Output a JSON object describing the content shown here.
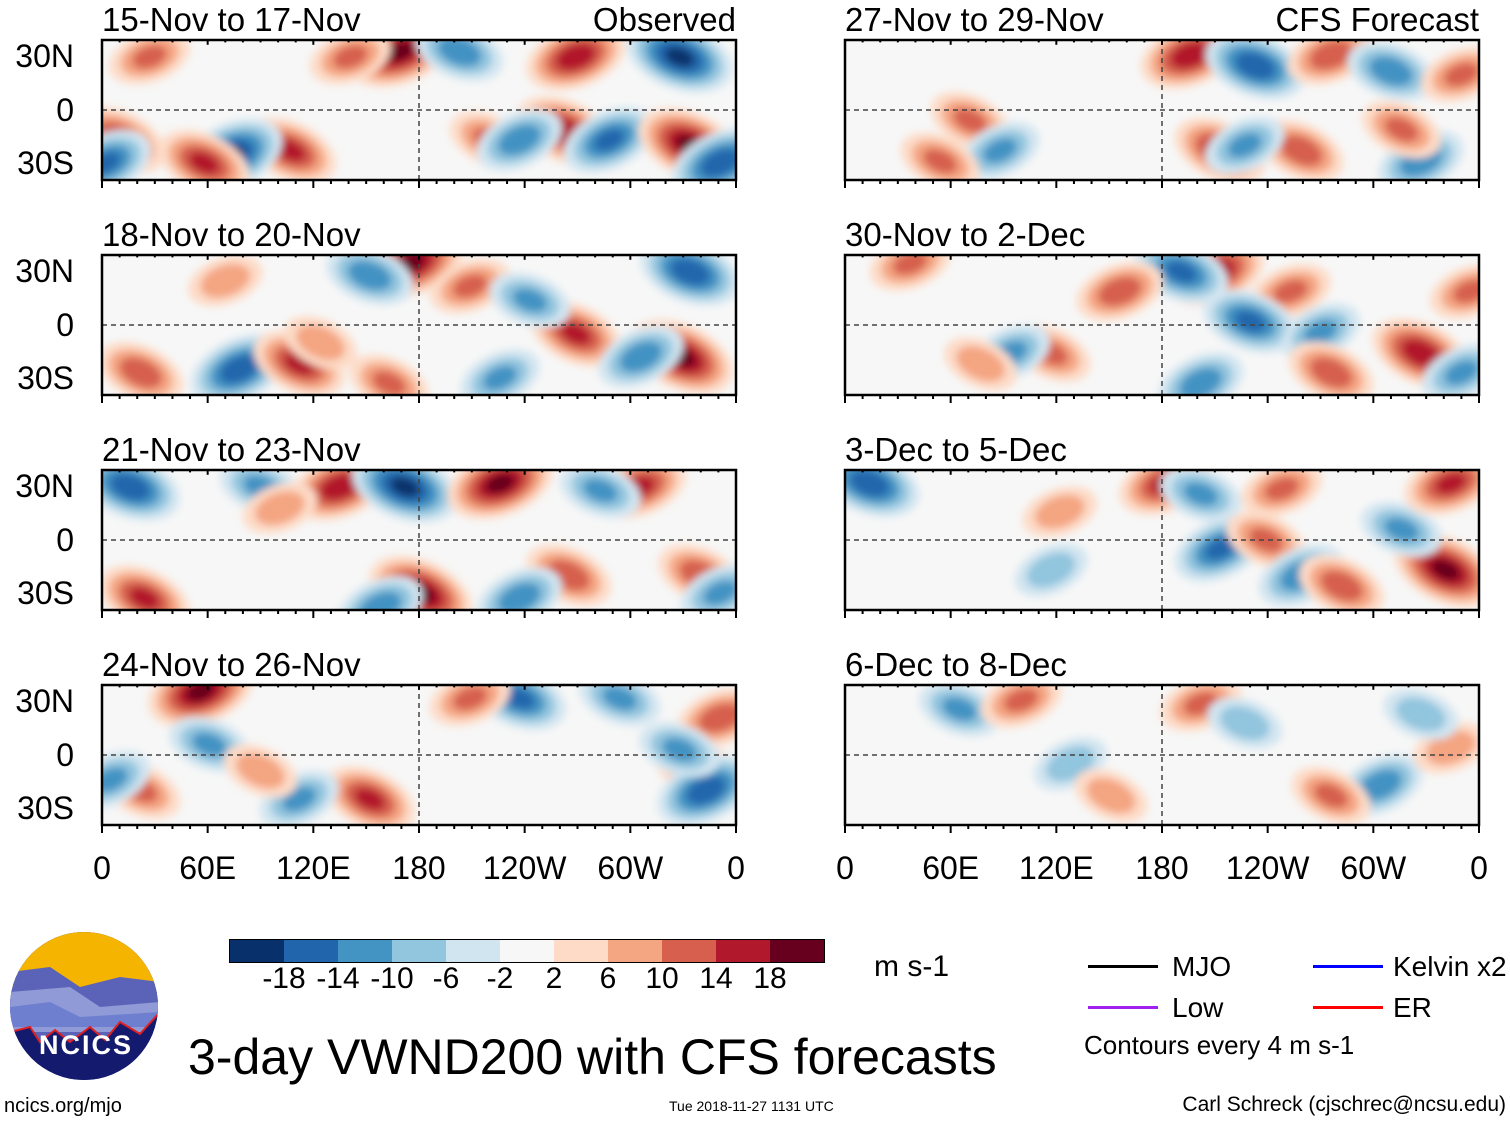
{
  "title": "3-day VWND200 with CFS forecasts",
  "logo_text": "NCICS",
  "url": "ncics.org/mjo",
  "timestamp": "Tue 2018-11-27 1131 UTC",
  "author": "Carl Schreck (cjschrec@ncsu.edu)",
  "column_headers": {
    "observed": "Observed",
    "forecast": "CFS Forecast"
  },
  "lat_labels": [
    "30N",
    "0",
    "30S"
  ],
  "lon_labels": [
    "0",
    "60E",
    "120E",
    "180",
    "120W",
    "60W",
    "0"
  ],
  "colorbar": {
    "units": "m s-1",
    "labels": [
      "-18",
      "-14",
      "-10",
      "-6",
      "-2",
      "2",
      "6",
      "10",
      "14",
      "18"
    ],
    "colors": [
      "#08306b",
      "#2166ac",
      "#4393c3",
      "#92c5de",
      "#d1e5f0",
      "#f7f7f7",
      "#fddbc7",
      "#f4a582",
      "#d6604d",
      "#b2182b",
      "#67001f"
    ]
  },
  "legend": {
    "items": [
      {
        "label": "MJO",
        "color": "#000000"
      },
      {
        "label": "Kelvin x2",
        "color": "#0000ff"
      },
      {
        "label": "Low",
        "color": "#a020f0"
      },
      {
        "label": "ER",
        "color": "#ff0000"
      }
    ],
    "note": "Contours every 4 m s-1"
  },
  "chart_data": {
    "type": "heatmap",
    "variable": "200-hPa meridional wind anomaly (m s-1)",
    "note": "approximate anomaly centers as [lon_deg_east, lat_deg, value]",
    "panels": [
      {
        "title": "15-Nov to 17-Nov",
        "kind": "observed",
        "centers": [
          [
            169,
            33,
            18
          ],
          [
            328,
            30,
            -18
          ],
          [
            269,
            30,
            16
          ],
          [
            107,
            -23,
            14
          ],
          [
            73,
            -26,
            -18
          ],
          [
            58,
            -30,
            14
          ],
          [
            263,
            -12,
            16
          ],
          [
            288,
            -17,
            -14
          ],
          [
            334,
            -20,
            18
          ],
          [
            351,
            -30,
            -16
          ],
          [
            220,
            -17,
            10
          ],
          [
            237,
            -17,
            -12
          ],
          [
            10,
            -17,
            14
          ],
          [
            2,
            -30,
            -14
          ],
          [
            141,
            30,
            10
          ],
          [
            203,
            33,
            -12
          ],
          [
            27,
            30,
            10
          ]
        ]
      },
      {
        "title": "18-Nov to 20-Nov",
        "kind": "observed",
        "centers": [
          [
            175,
            35,
            18
          ],
          [
            152,
            28,
            -12
          ],
          [
            334,
            30,
            -16
          ],
          [
            269,
            -5,
            14
          ],
          [
            329,
            -18,
            18
          ],
          [
            306,
            -18,
            -12
          ],
          [
            78,
            -25,
            -16
          ],
          [
            112,
            -22,
            14
          ],
          [
            163,
            -33,
            10
          ],
          [
            226,
            -30,
            -10
          ],
          [
            22,
            -27,
            12
          ],
          [
            209,
            22,
            10
          ],
          [
            243,
            14,
            -10
          ],
          [
            70,
            25,
            8
          ],
          [
            124,
            -10,
            8
          ]
        ]
      },
      {
        "title": "21-Nov to 23-Nov",
        "kind": "observed",
        "centers": [
          [
            16,
            30,
            -16
          ],
          [
            135,
            30,
            16
          ],
          [
            172,
            30,
            -18
          ],
          [
            226,
            32,
            18
          ],
          [
            305,
            30,
            14
          ],
          [
            283,
            28,
            -10
          ],
          [
            90,
            30,
            -10
          ],
          [
            181,
            -30,
            18
          ],
          [
            265,
            -20,
            12
          ],
          [
            237,
            -33,
            -12
          ],
          [
            340,
            -20,
            12
          ],
          [
            351,
            -30,
            -10
          ],
          [
            24,
            -33,
            14
          ],
          [
            158,
            -38,
            -12
          ],
          [
            101,
            18,
            8
          ]
        ]
      },
      {
        "title": "24-Nov to 26-Nov",
        "kind": "observed",
        "centers": [
          [
            56,
            36,
            18
          ],
          [
            237,
            32,
            -14
          ],
          [
            209,
            32,
            10
          ],
          [
            294,
            32,
            -10
          ],
          [
            340,
            -9,
            14
          ],
          [
            343,
            -20,
            -16
          ],
          [
            351,
            21,
            12
          ],
          [
            152,
            -25,
            14
          ],
          [
            61,
            6,
            -10
          ],
          [
            112,
            -25,
            -10
          ],
          [
            90,
            -9,
            8
          ],
          [
            22,
            -20,
            10
          ],
          [
            328,
            3,
            -10
          ],
          [
            5,
            -14,
            -10
          ]
        ]
      },
      {
        "title": "27-Nov to 29-Nov",
        "kind": "forecast",
        "centers": [
          [
            196,
            31,
            16
          ],
          [
            233,
            25,
            -16
          ],
          [
            276,
            31,
            12
          ],
          [
            310,
            22,
            -12
          ],
          [
            259,
            -23,
            12
          ],
          [
            213,
            -23,
            14
          ],
          [
            227,
            -20,
            -10
          ],
          [
            327,
            -29,
            -12
          ],
          [
            316,
            -11,
            10
          ],
          [
            71,
            -6,
            10
          ],
          [
            88,
            -23,
            -10
          ],
          [
            54,
            -29,
            10
          ],
          [
            350,
            20,
            10
          ]
        ]
      },
      {
        "title": "30-Nov to 2-Dec",
        "kind": "forecast",
        "centers": [
          [
            210,
            30,
            16
          ],
          [
            191,
            30,
            -14
          ],
          [
            156,
            19,
            12
          ],
          [
            253,
            19,
            10
          ],
          [
            230,
            2,
            -14
          ],
          [
            270,
            -4,
            -10
          ],
          [
            327,
            -16,
            16
          ],
          [
            276,
            -27,
            12
          ],
          [
            202,
            -33,
            -12
          ],
          [
            117,
            -16,
            10
          ],
          [
            94,
            -16,
            -10
          ],
          [
            77,
            -22,
            8
          ],
          [
            355,
            19,
            10
          ],
          [
            350,
            -27,
            -10
          ],
          [
            37,
            35,
            10
          ]
        ]
      },
      {
        "title": "3-Dec to 5-Dec",
        "kind": "forecast",
        "centers": [
          [
            14,
            32,
            -16
          ],
          [
            182,
            32,
            14
          ],
          [
            213,
            -5,
            -14
          ],
          [
            239,
            0,
            10
          ],
          [
            341,
            -17,
            18
          ],
          [
            316,
            6,
            -10
          ],
          [
            259,
            -20,
            -12
          ],
          [
            282,
            -26,
            12
          ],
          [
            344,
            32,
            14
          ],
          [
            202,
            26,
            -10
          ],
          [
            122,
            16,
            8
          ],
          [
            117,
            -17,
            -8
          ],
          [
            248,
            29,
            10
          ]
        ]
      },
      {
        "title": "6-Dec to 8-Dec",
        "kind": "forecast",
        "centers": [
          [
            65,
            26,
            -10
          ],
          [
            100,
            31,
            10
          ],
          [
            202,
            29,
            10
          ],
          [
            227,
            18,
            -8
          ],
          [
            304,
            -17,
            -12
          ],
          [
            276,
            -23,
            10
          ],
          [
            128,
            -5,
            -8
          ],
          [
            344,
            4,
            8
          ],
          [
            151,
            -23,
            8
          ],
          [
            327,
            23,
            -8
          ]
        ]
      }
    ]
  }
}
